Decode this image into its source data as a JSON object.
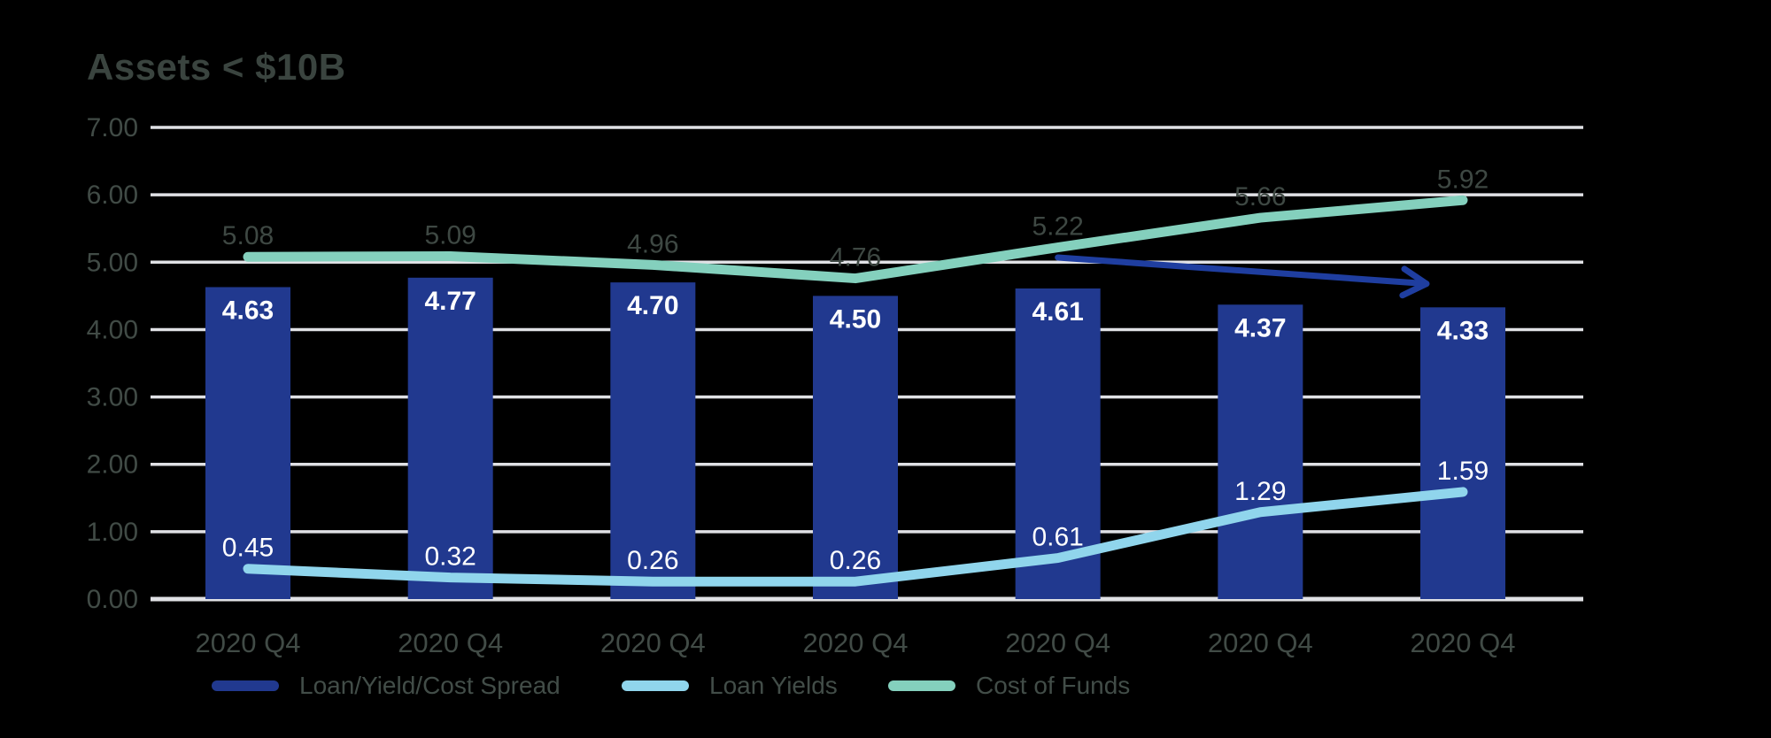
{
  "title": "Assets < $10B",
  "colors": {
    "background": "#000000",
    "gridline": "#E0E1E5",
    "axis_text": "#414B46",
    "title_text": "#3A443F",
    "legend_text": "#424D48",
    "bar_value_text": "#FFFFFF"
  },
  "chart_data": {
    "type": "combo-bar-line",
    "title": "Assets < $10B",
    "categories": [
      "2020 Q4",
      "2020 Q4",
      "2020 Q4",
      "2020 Q4",
      "2020 Q4",
      "2020 Q4",
      "2020 Q4"
    ],
    "yticks": [
      "0.00",
      "1.00",
      "2.00",
      "3.00",
      "4.00",
      "5.00",
      "6.00",
      "7.00"
    ],
    "ylim": [
      0,
      7
    ],
    "grid": true,
    "legend_position": "bottom",
    "series": [
      {
        "name": "Loan/Yield/Cost Spread",
        "type": "bar",
        "color": "#21398F",
        "label_color": "#FFFFFF",
        "values": [
          4.63,
          4.77,
          4.7,
          4.5,
          4.61,
          4.37,
          4.33
        ]
      },
      {
        "name": "Loan Yields",
        "type": "line",
        "color": "#90D5EC",
        "label_color": "#FFFFFF",
        "values": [
          0.45,
          0.32,
          0.26,
          0.26,
          0.61,
          1.29,
          1.59
        ]
      },
      {
        "name": "Cost of Funds",
        "type": "line",
        "color": "#84D0BD",
        "label_color": "#3E4843",
        "values": [
          5.08,
          5.09,
          4.96,
          4.76,
          5.22,
          5.66,
          5.92
        ]
      }
    ],
    "annotation_arrow": {
      "color": "#1F3EA0",
      "from_index": 4,
      "from_value": 5.07,
      "to_index": 5.82,
      "to_value": 4.68
    }
  }
}
